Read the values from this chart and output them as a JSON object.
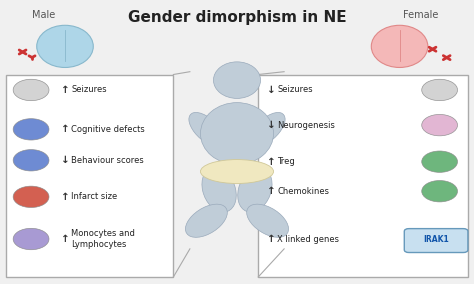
{
  "title": "Gender dimorphism in NE",
  "title_fontsize": 11,
  "title_fontweight": "bold",
  "bg_color": "#f5f5f5",
  "male_label": "Male",
  "female_label": "Female",
  "male_brain_color": "#aed6e8",
  "female_brain_color": "#f4b8b8",
  "left_box_items": [
    {
      "arrow": "↑",
      "text": "Seizures",
      "icon_color": "#cccccc"
    },
    {
      "arrow": "↑",
      "text": "Cognitive defects",
      "icon_color": "#5577cc"
    },
    {
      "arrow": "↓",
      "text": "Behaviour scores",
      "icon_color": "#5577cc"
    },
    {
      "arrow": "↑",
      "text": "Infarct size",
      "icon_color": "#cc4433"
    },
    {
      "arrow": "↑",
      "text": "Monocytes and\nLymphocytes",
      "icon_color": "#9988cc"
    }
  ],
  "right_box_items": [
    {
      "arrow": "↓",
      "text": "Seizures",
      "icon_color": "#cccccc"
    },
    {
      "arrow": "↓",
      "text": "Neurogenesis",
      "icon_color": "#ddaacc"
    },
    {
      "arrow": "↑",
      "text": "Treg",
      "icon_color": "#55aa66"
    },
    {
      "arrow": "↑",
      "text": "Chemokines",
      "icon_color": "#55aa66"
    },
    {
      "arrow": "↑",
      "text": "X linked genes",
      "icon_color": "#d0e8f5"
    }
  ],
  "irak1_label": "IRAK1",
  "irak1_box_color": "#c8e0f0",
  "irak1_box_edge": "#6699bb",
  "left_box_edge": "#aaaaaa",
  "right_box_edge": "#aaaaaa",
  "arrow_color": "#333333",
  "text_color": "#222222",
  "male_chrom_color": "#cc3333",
  "female_chrom_color": "#cc3333",
  "baby_color": "#c0cdd8",
  "diaper_color": "#f0e8c0"
}
